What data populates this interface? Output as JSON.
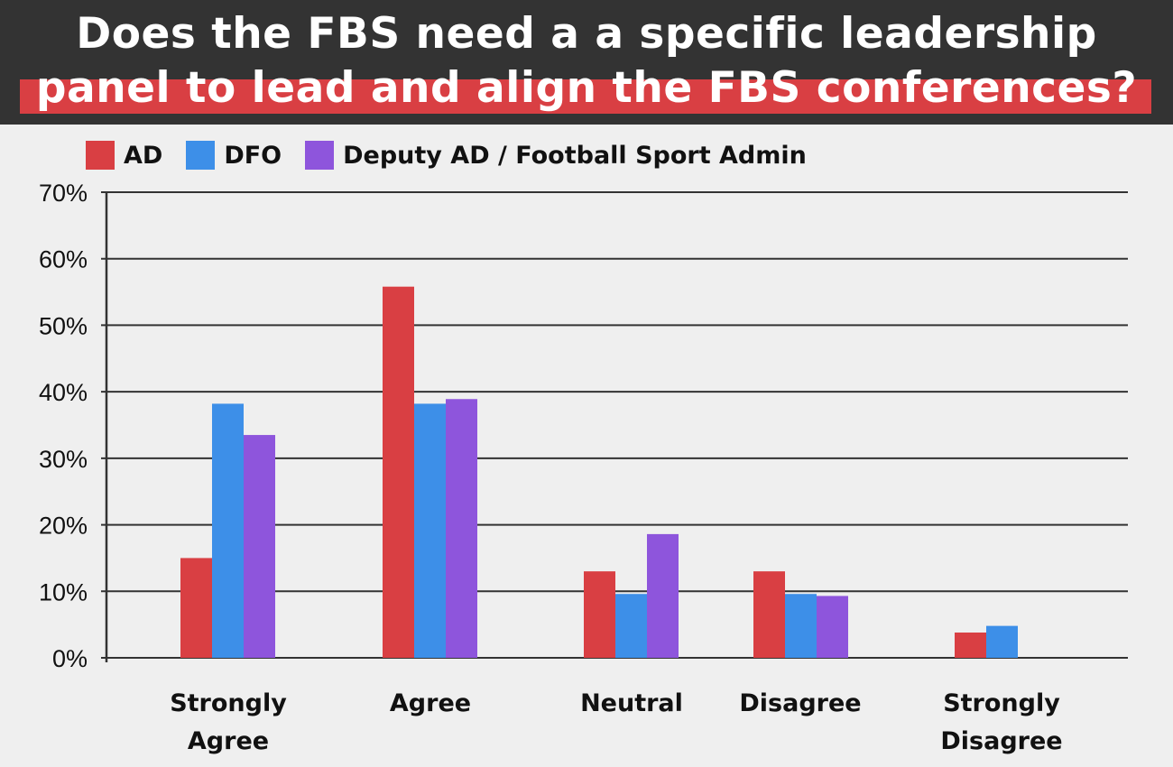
{
  "title": {
    "line1": "Does the FBS need a a specific leadership",
    "line2": "panel to lead and align the FBS conferences?"
  },
  "colors": {
    "title_bar": "#333333",
    "title_band": "#d93f43",
    "background": "#efefef",
    "grid": "#333333"
  },
  "chart_data": {
    "type": "bar",
    "categories": [
      [
        "Strongly",
        "Agree"
      ],
      [
        "Agree"
      ],
      [
        "Neutral"
      ],
      [
        "Disagree"
      ],
      [
        "Strongly",
        "Disagree"
      ]
    ],
    "series": [
      {
        "name": "AD",
        "color": "#d93f43",
        "values": [
          15,
          55.8,
          13,
          13,
          3.8
        ]
      },
      {
        "name": "DFO",
        "color": "#3d8fe8",
        "values": [
          38.2,
          38.2,
          9.6,
          9.6,
          4.8
        ]
      },
      {
        "name": "Deputy AD / Football Sport Admin",
        "color": "#8e55dc",
        "values": [
          33.5,
          38.9,
          18.6,
          9.3,
          0
        ]
      }
    ],
    "yticks": [
      "0%",
      "10%",
      "20%",
      "30%",
      "40%",
      "50%",
      "60%",
      "70%"
    ],
    "ylim": [
      0,
      70
    ],
    "grid": true,
    "legend_position": "top-left"
  }
}
